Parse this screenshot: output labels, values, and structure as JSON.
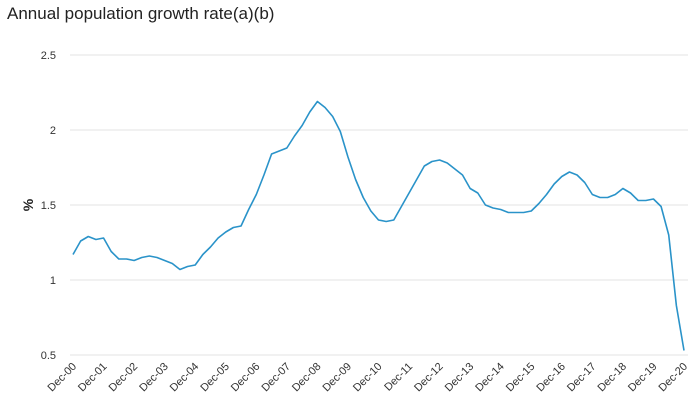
{
  "chart_data": {
    "type": "line",
    "title": "Annual population growth rate(a)(b)",
    "xlabel": "",
    "ylabel": "%",
    "ylim": [
      0.5,
      2.5
    ],
    "yticks": [
      "0.5",
      "1",
      "1.5",
      "2",
      "2.5"
    ],
    "xticks": [
      "Dec-00",
      "Dec-01",
      "Dec-02",
      "Dec-03",
      "Dec-04",
      "Dec-05",
      "Dec-06",
      "Dec-07",
      "Dec-08",
      "Dec-09",
      "Dec-10",
      "Dec-11",
      "Dec-12",
      "Dec-13",
      "Dec-14",
      "Dec-15",
      "Dec-16",
      "Dec-17",
      "Dec-18",
      "Dec-19",
      "Dec-20"
    ],
    "grid": "horizontal",
    "series_color": "#2a93c9",
    "series": [
      {
        "values": [
          1.17,
          1.26,
          1.29,
          1.27,
          1.28,
          1.19,
          1.14,
          1.14,
          1.13,
          1.15,
          1.16,
          1.15,
          1.13,
          1.11,
          1.07,
          1.09,
          1.1,
          1.17,
          1.22,
          1.28,
          1.32,
          1.35,
          1.36,
          1.47,
          1.57,
          1.7,
          1.84,
          1.86,
          1.88,
          1.96,
          2.03,
          2.12,
          2.19,
          2.15,
          2.09,
          1.99,
          1.82,
          1.67,
          1.55,
          1.46,
          1.4,
          1.39,
          1.4,
          1.49,
          1.58,
          1.67,
          1.76,
          1.79,
          1.8,
          1.78,
          1.74,
          1.7,
          1.61,
          1.58,
          1.5,
          1.48,
          1.47,
          1.45,
          1.45,
          1.45,
          1.46,
          1.51,
          1.57,
          1.64,
          1.69,
          1.72,
          1.7,
          1.65,
          1.57,
          1.55,
          1.55,
          1.57,
          1.61,
          1.58,
          1.53,
          1.53,
          1.54,
          1.49,
          1.3,
          0.83,
          0.53
        ]
      }
    ]
  }
}
